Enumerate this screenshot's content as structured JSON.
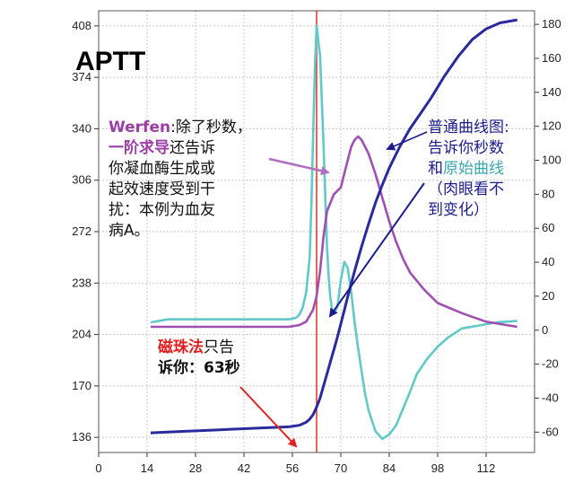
{
  "chart_data": {
    "type": "line",
    "title": "APTT",
    "x_ticks": [
      "0",
      "14",
      "28",
      "42",
      "56",
      "70",
      "84",
      "98",
      "112"
    ],
    "xlim": [
      0,
      126
    ],
    "y_left_ticks": [
      "136",
      "170",
      "204",
      "238",
      "272",
      "306",
      "340",
      "374",
      "408"
    ],
    "ylim_left": [
      126,
      418
    ],
    "y_right_ticks": [
      "-60",
      "-40",
      "-20",
      "0",
      "20",
      "40",
      "60",
      "80",
      "100",
      "120",
      "140",
      "160",
      "180"
    ],
    "ylim_right": [
      -72,
      188
    ],
    "grid": true,
    "vline_x": 63,
    "series": [
      {
        "color": "#2a2a9c",
        "axis": "left",
        "x": [
          15,
          25,
          35,
          45,
          55,
          58,
          60,
          61,
          62,
          63,
          64,
          65,
          66,
          67,
          68,
          69,
          70,
          71,
          72,
          74,
          76,
          78,
          80,
          82,
          84,
          87,
          90,
          93,
          96,
          100,
          104,
          108,
          112,
          116,
          121
        ],
        "y": [
          139,
          140,
          141,
          142,
          143,
          144,
          146,
          148,
          151,
          156,
          162,
          170,
          178,
          186,
          194,
          202,
          211,
          220,
          229,
          246,
          262,
          277,
          291,
          303,
          314,
          328,
          340,
          350,
          360,
          375,
          388,
          399,
          406,
          410,
          412
        ]
      },
      {
        "color": "#63c8c8",
        "axis": "left",
        "x": [
          15,
          20,
          30,
          40,
          50,
          55,
          57,
          58,
          59,
          60,
          61,
          61.5,
          62,
          62.5,
          63,
          64,
          65,
          66,
          66.5,
          67,
          67.5,
          68,
          69,
          70,
          71,
          72,
          73,
          74,
          75,
          76,
          77,
          78,
          80,
          82,
          84,
          86,
          88,
          90,
          92,
          95,
          98,
          101,
          105,
          110,
          115,
          121
        ],
        "y": [
          212,
          214,
          214,
          214,
          214,
          214,
          215,
          217,
          222,
          232,
          255,
          290,
          335,
          380,
          408,
          388,
          330,
          262,
          242,
          228,
          220,
          218,
          222,
          240,
          252,
          248,
          232,
          212,
          195,
          180,
          165,
          154,
          140,
          135,
          138,
          144,
          155,
          166,
          178,
          188,
          196,
          202,
          208,
          210,
          212,
          213
        ]
      },
      {
        "color": "#a050b0",
        "axis": "right",
        "x": [
          15,
          25,
          35,
          45,
          55,
          58,
          60,
          62,
          63,
          64,
          65,
          66,
          68,
          70,
          72,
          73,
          74,
          75,
          76,
          78,
          80,
          82,
          84,
          86,
          88,
          90,
          94,
          98,
          105,
          112,
          118,
          121
        ],
        "y": [
          2,
          2,
          2,
          2,
          2,
          3,
          5,
          12,
          20,
          35,
          55,
          70,
          80,
          84,
          100,
          108,
          112,
          114,
          112,
          104,
          92,
          78,
          64,
          52,
          42,
          34,
          24,
          16,
          10,
          5,
          3,
          2
        ]
      }
    ]
  },
  "annotations": {
    "werfen_label": "Werfen",
    "werfen_line1": ":除了秒数，",
    "derivative_label": "一阶求导",
    "werfen_line2": "还告诉",
    "werfen_line3": "你凝血酶生成或",
    "werfen_line4": "起效速度受到干",
    "werfen_line5": "扰：本例为血友",
    "werfen_line6": "病A。",
    "normal_curve_label": "普通曲线图",
    "normal_line1_suffix": ":",
    "normal_line2": "告诉你秒数",
    "normal_line3_prefix": "和",
    "original_curve_label": "原始曲线",
    "naked_eye_line1": "（肉眼看不",
    "naked_eye_line2": "到变化）",
    "magnetic_label": "磁珠法",
    "magnetic_line1_suffix": "只告",
    "magnetic_line2": "诉你：63秒"
  },
  "colors": {
    "coag_curve": "#2a2a9c",
    "raw_signal": "#63c8c8",
    "derivative": "#a050b0",
    "marker_line": "#e03020",
    "grid": "#c8c8c8",
    "arrow_purple": "#b070c0",
    "arrow_navy": "#1c1c8c",
    "arrow_red": "#e02020"
  }
}
